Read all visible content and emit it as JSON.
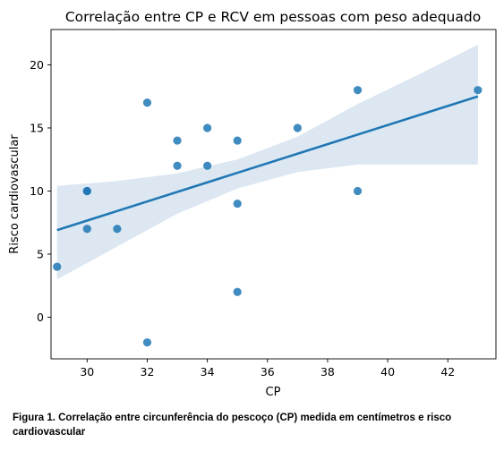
{
  "chart_data": {
    "type": "scatter",
    "title": "Correlação entre CP e RCV em pessoas com peso adequado",
    "xlabel": "CP",
    "ylabel": "Risco cardiovascular",
    "xlim": [
      28.8,
      43.6
    ],
    "ylim": [
      -3.3,
      22.8
    ],
    "xticks": [
      30,
      32,
      34,
      36,
      38,
      40,
      42
    ],
    "yticks": [
      0,
      5,
      10,
      15,
      20
    ],
    "grid": false,
    "points": [
      {
        "x": 29,
        "y": 4
      },
      {
        "x": 30,
        "y": 10
      },
      {
        "x": 30,
        "y": 10
      },
      {
        "x": 30,
        "y": 7
      },
      {
        "x": 31,
        "y": 7
      },
      {
        "x": 32,
        "y": 17
      },
      {
        "x": 32,
        "y": -2
      },
      {
        "x": 33,
        "y": 14
      },
      {
        "x": 33,
        "y": 12
      },
      {
        "x": 34,
        "y": 15
      },
      {
        "x": 34,
        "y": 12
      },
      {
        "x": 35,
        "y": 14
      },
      {
        "x": 35,
        "y": 9
      },
      {
        "x": 35,
        "y": 2
      },
      {
        "x": 37,
        "y": 15
      },
      {
        "x": 39,
        "y": 18
      },
      {
        "x": 39,
        "y": 10
      },
      {
        "x": 43,
        "y": 18
      }
    ],
    "regression_line": {
      "x": [
        29,
        43
      ],
      "y": [
        6.9,
        17.5
      ]
    },
    "confidence_band": {
      "x": [
        29,
        31,
        33,
        35,
        37,
        39,
        41,
        43
      ],
      "upper": [
        10.4,
        10.8,
        11.4,
        12.5,
        14.3,
        16.9,
        19.2,
        21.6
      ],
      "lower": [
        3.0,
        5.6,
        8.2,
        10.2,
        11.5,
        12.1,
        12.1,
        12.1
      ]
    },
    "colors": {
      "points": "#1f77b4",
      "line": "#1f77b4",
      "band": "#dce7f2"
    }
  },
  "caption": "Figura 1. Correlação entre circunferência do pescoço (CP) medida em centímetros e risco cardiovascular"
}
